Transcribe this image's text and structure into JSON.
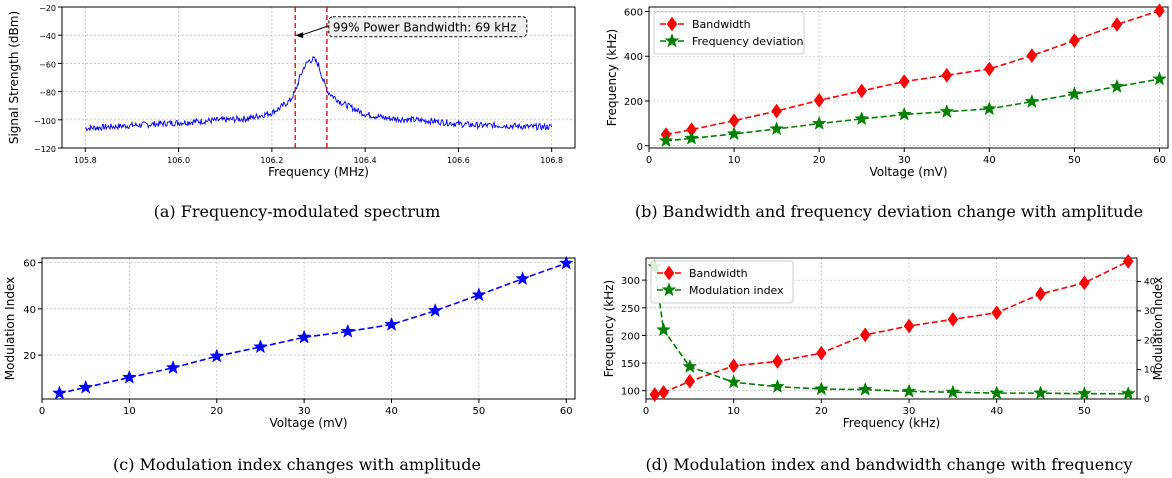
{
  "chart_data": [
    {
      "id": "a",
      "type": "line",
      "caption": "(a)  Frequency-modulated spectrum",
      "xlabel": "Frequency (MHz)",
      "ylabel": "Signal Strength (dBm)",
      "xlim": [
        105.75,
        106.85
      ],
      "ylim": [
        -120,
        -20
      ],
      "xticks": [
        105.8,
        106.0,
        106.2,
        106.4,
        106.6,
        106.8
      ],
      "xtick_labels": [
        "105.8",
        "106.0",
        "106.2",
        "106.4",
        "106.6",
        "106.8"
      ],
      "yticks": [
        -120,
        -100,
        -80,
        -60,
        -40,
        -20
      ],
      "ytick_labels": [
        "−120",
        "−100",
        "−80",
        "−60",
        "−40",
        "−20"
      ],
      "grid": true,
      "line_color": "#0000ff",
      "series": [
        {
          "x": [
            105.8,
            105.85,
            105.9,
            105.95,
            106.0,
            106.05,
            106.1,
            106.15,
            106.2,
            106.22,
            106.24,
            106.25,
            106.26,
            106.27,
            106.28,
            106.29,
            106.3,
            106.31,
            106.32,
            106.33,
            106.35,
            106.4,
            106.45,
            106.5,
            106.55,
            106.6,
            106.65,
            106.7,
            106.75,
            106.8
          ],
          "values": [
            -106,
            -105,
            -104,
            -103,
            -102,
            -101,
            -100,
            -99,
            -95,
            -91,
            -86,
            -80,
            -70,
            -62,
            -58,
            -57,
            -61,
            -72,
            -80,
            -83,
            -88,
            -96,
            -99,
            -100,
            -101,
            -103,
            -104,
            -104,
            -105,
            -105
          ]
        }
      ],
      "vlines": [
        106.25,
        106.318
      ],
      "vline_color": "#dd0000",
      "annotation": {
        "text": "99% Power Bandwidth: 69 kHz",
        "arrow_to": [
          106.25,
          -40
        ],
        "text_at": [
          106.32,
          -34
        ]
      }
    },
    {
      "id": "b",
      "type": "line",
      "caption": "(b)  Bandwidth and frequency deviation change with amplitude",
      "xlabel": "Voltage (mV)",
      "ylabel": "Frequency (kHz)",
      "xlim": [
        0,
        61
      ],
      "ylim": [
        -10,
        620
      ],
      "xticks": [
        0,
        10,
        20,
        30,
        40,
        50,
        60
      ],
      "yticks": [
        0,
        200,
        400,
        600
      ],
      "grid": true,
      "legend": "top-left",
      "x": [
        2,
        5,
        10,
        15,
        20,
        25,
        30,
        35,
        40,
        45,
        50,
        55,
        60
      ],
      "series": [
        {
          "name": "Bandwidth",
          "color": "#ff0000",
          "marker": "diamond",
          "values": [
            50,
            72,
            112,
            155,
            203,
            245,
            287,
            315,
            343,
            403,
            470,
            542,
            603
          ]
        },
        {
          "name": "Frequency deviation",
          "color": "#008000",
          "marker": "star",
          "values": [
            22,
            33,
            53,
            75,
            99,
            120,
            140,
            152,
            165,
            197,
            231,
            264,
            298
          ]
        }
      ]
    },
    {
      "id": "c",
      "type": "line",
      "caption": "(c)  Modulation index changes with amplitude",
      "xlabel": "Voltage (mV)",
      "ylabel": "Modulation Index",
      "xlim": [
        0,
        61
      ],
      "ylim": [
        1,
        62
      ],
      "xticks": [
        0,
        10,
        20,
        30,
        40,
        50,
        60
      ],
      "yticks": [
        20,
        40,
        60
      ],
      "grid": true,
      "x": [
        2,
        5,
        10,
        15,
        20,
        25,
        30,
        35,
        40,
        45,
        50,
        55,
        60
      ],
      "series": [
        {
          "color": "#0000ff",
          "marker": "star",
          "values": [
            3.5,
            6,
            10.3,
            14.5,
            19.5,
            23.5,
            27.7,
            30.2,
            33.2,
            39.2,
            46,
            53,
            59.7
          ]
        }
      ]
    },
    {
      "id": "d",
      "type": "line",
      "caption": "(d)  Modulation index and bandwidth change with frequency",
      "xlabel": "Frequency (kHz)",
      "ylabel": "Frequency (kHz)",
      "ylabel_right": "Modulation Index",
      "xlim": [
        0,
        56
      ],
      "ylim": [
        85,
        340
      ],
      "ylim_right": [
        0,
        48
      ],
      "xticks": [
        0,
        10,
        20,
        30,
        40,
        50
      ],
      "yticks": [
        100,
        150,
        200,
        250,
        300
      ],
      "yticks_right": [
        0,
        10,
        20,
        30,
        40
      ],
      "grid": true,
      "legend": "top-left",
      "x": [
        1,
        2,
        5,
        10,
        15,
        20,
        25,
        30,
        35,
        40,
        45,
        50,
        55
      ],
      "series": [
        {
          "name": "Bandwidth",
          "color": "#ff0000",
          "marker": "diamond",
          "axis": "left",
          "values": [
            93,
            97,
            117,
            145,
            153,
            168,
            201,
            217,
            229,
            241,
            275,
            295,
            334
          ]
        },
        {
          "name": "Modulation index",
          "color": "#008000",
          "marker": "star",
          "axis": "right",
          "values": [
            45,
            23.5,
            11,
            5.7,
            4.2,
            3.4,
            3.2,
            2.6,
            2.3,
            2.0,
            2.0,
            1.8,
            1.8
          ]
        }
      ]
    }
  ]
}
